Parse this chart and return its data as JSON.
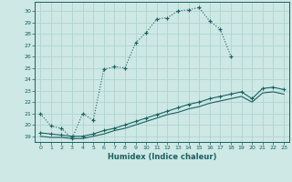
{
  "xlabel": "Humidex (Indice chaleur)",
  "bg_color": "#cde8e5",
  "grid_color": "#b0d4d0",
  "line_color": "#1a6060",
  "ylim": [
    18.5,
    30.8
  ],
  "xlim": [
    -0.5,
    23.5
  ],
  "yticks": [
    19,
    20,
    21,
    22,
    23,
    24,
    25,
    26,
    27,
    28,
    29,
    30
  ],
  "xticks": [
    0,
    1,
    2,
    3,
    4,
    5,
    6,
    7,
    8,
    9,
    10,
    11,
    12,
    13,
    14,
    15,
    16,
    17,
    18,
    19,
    20,
    21,
    22,
    23
  ],
  "line1_x": [
    0,
    1,
    2,
    3,
    4,
    5,
    6,
    7,
    8,
    9,
    10,
    11,
    12,
    13,
    14,
    15,
    16,
    17,
    18
  ],
  "line1_y": [
    21.0,
    19.9,
    19.7,
    18.8,
    21.0,
    20.4,
    24.9,
    25.1,
    25.0,
    27.2,
    28.1,
    29.3,
    29.4,
    30.0,
    30.1,
    30.3,
    29.1,
    28.4,
    26.0
  ],
  "line2_x": [
    0,
    1,
    2,
    3,
    4,
    5,
    6,
    7,
    8,
    9,
    10,
    11,
    12,
    13,
    14,
    15,
    16,
    17,
    18,
    19,
    20,
    21,
    22,
    23
  ],
  "line2_y": [
    19.3,
    19.2,
    19.1,
    19.0,
    19.0,
    19.2,
    19.5,
    19.7,
    20.0,
    20.3,
    20.6,
    20.9,
    21.2,
    21.5,
    21.8,
    22.0,
    22.3,
    22.5,
    22.7,
    22.9,
    22.3,
    23.2,
    23.3,
    23.1
  ],
  "line3_x": [
    0,
    1,
    2,
    3,
    4,
    5,
    6,
    7,
    8,
    9,
    10,
    11,
    12,
    13,
    14,
    15,
    16,
    17,
    18,
    19,
    20,
    21,
    22,
    23
  ],
  "line3_y": [
    19.0,
    18.9,
    18.9,
    18.8,
    18.8,
    19.0,
    19.2,
    19.5,
    19.7,
    20.0,
    20.3,
    20.6,
    20.9,
    21.1,
    21.4,
    21.6,
    21.9,
    22.1,
    22.3,
    22.5,
    22.0,
    22.8,
    22.9,
    22.7
  ]
}
